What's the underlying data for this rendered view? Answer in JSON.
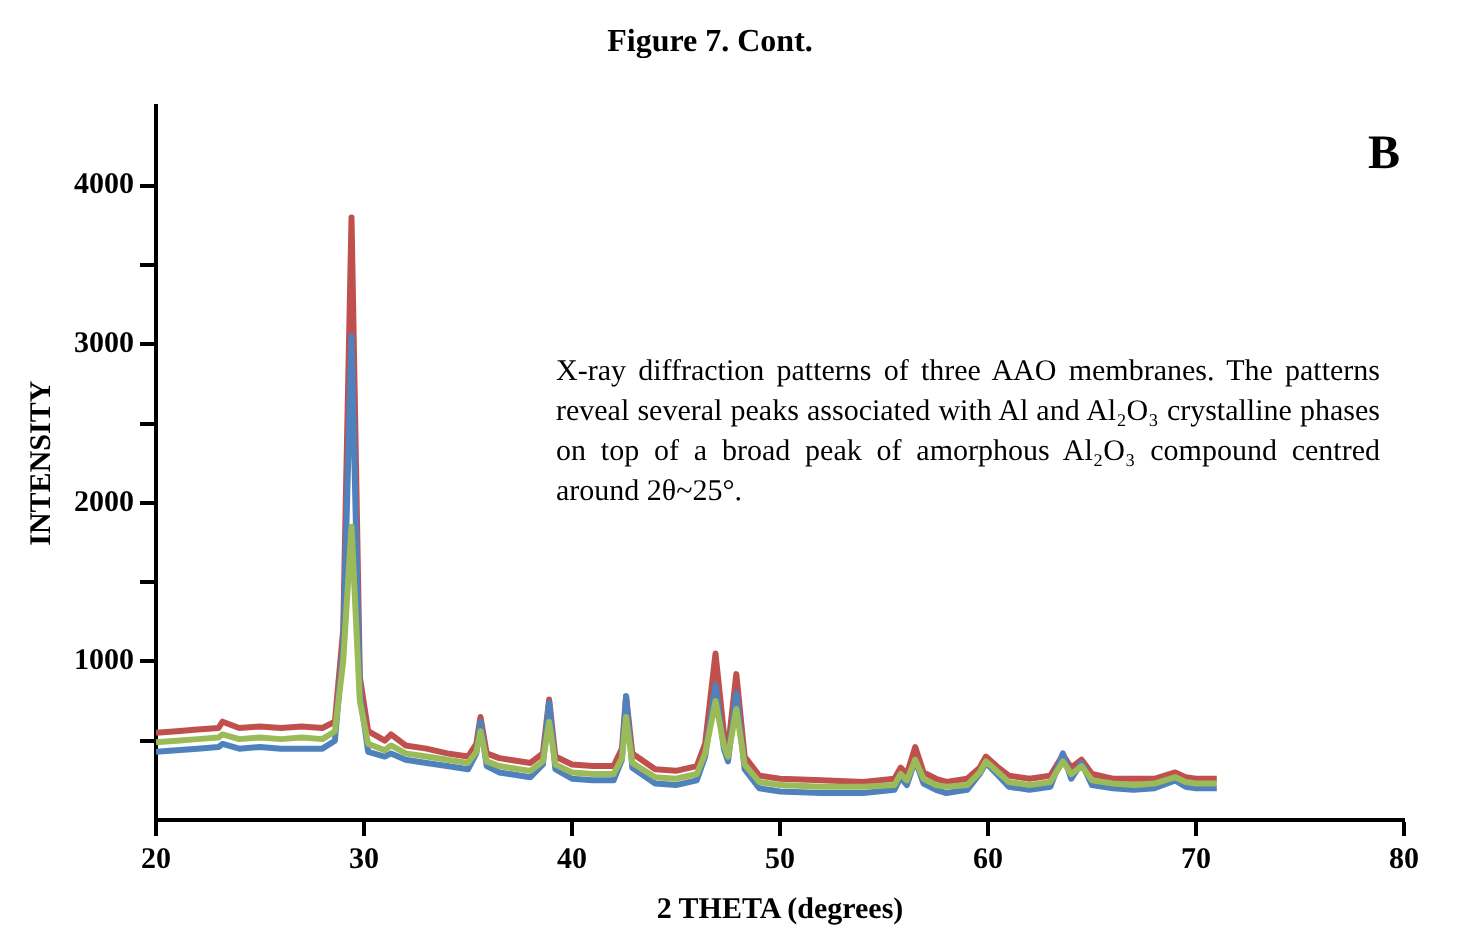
{
  "chart_data": {
    "type": "line",
    "title": "Figure 7. Cont.",
    "xlabel": "2 THETA (degrees)",
    "ylabel": "INTENSITY",
    "annotations": [
      "B",
      "X-ray diffraction patterns of three AAO membranes. The patterns reveal several peaks associated with Al and Al₂O₃ crystalline phases on top of a broad peak of amorphous Al₂O₃ compound centred around 2θ~25°."
    ],
    "x": [
      20,
      21,
      22,
      23,
      23.2,
      24,
      25,
      26,
      27,
      28,
      28.6,
      29.0,
      29.4,
      29.8,
      30.2,
      31,
      31.3,
      32,
      33,
      34,
      35,
      35.4,
      35.6,
      35.9,
      36.5,
      37,
      38,
      38.6,
      38.9,
      39.2,
      40,
      41,
      42,
      42.4,
      42.6,
      42.9,
      44,
      45,
      46,
      46.4,
      46.9,
      47.3,
      47.5,
      47.9,
      48.3,
      49,
      50,
      52,
      54,
      55.5,
      55.8,
      56.1,
      56.5,
      56.9,
      57.5,
      58,
      59,
      59.6,
      59.9,
      60.5,
      61,
      62,
      63,
      63.6,
      64,
      64.5,
      65,
      66,
      67,
      68,
      69,
      69.5,
      70,
      71
    ],
    "series": [
      {
        "color": "#c0504d",
        "values": [
          550,
          560,
          570,
          580,
          620,
          580,
          590,
          580,
          590,
          580,
          620,
          1200,
          3800,
          900,
          560,
          500,
          540,
          470,
          450,
          420,
          400,
          480,
          650,
          420,
          390,
          380,
          360,
          420,
          760,
          400,
          350,
          340,
          340,
          450,
          780,
          420,
          320,
          310,
          340,
          480,
          1050,
          550,
          450,
          920,
          400,
          280,
          260,
          250,
          240,
          260,
          330,
          290,
          460,
          300,
          260,
          240,
          260,
          330,
          400,
          330,
          280,
          260,
          280,
          410,
          330,
          380,
          290,
          260,
          260,
          260,
          300,
          270,
          260,
          260
        ]
      },
      {
        "color": "#4f81bd",
        "values": [
          430,
          440,
          450,
          460,
          480,
          450,
          460,
          450,
          450,
          450,
          500,
          1100,
          3050,
          800,
          430,
          400,
          420,
          380,
          360,
          340,
          320,
          420,
          620,
          340,
          300,
          290,
          270,
          350,
          740,
          320,
          260,
          250,
          250,
          380,
          780,
          330,
          230,
          220,
          250,
          400,
          850,
          450,
          370,
          800,
          320,
          200,
          180,
          170,
          170,
          190,
          270,
          220,
          380,
          230,
          190,
          170,
          190,
          290,
          360,
          280,
          210,
          190,
          210,
          420,
          260,
          360,
          220,
          200,
          190,
          200,
          250,
          210,
          200,
          200
        ]
      },
      {
        "color": "#9bbb59",
        "values": [
          490,
          500,
          510,
          520,
          540,
          510,
          520,
          510,
          520,
          510,
          560,
          1000,
          1850,
          750,
          480,
          440,
          470,
          420,
          400,
          380,
          360,
          430,
          560,
          370,
          340,
          330,
          310,
          370,
          620,
          350,
          300,
          290,
          290,
          390,
          650,
          360,
          270,
          260,
          290,
          420,
          750,
          470,
          400,
          700,
          350,
          240,
          220,
          210,
          210,
          220,
          290,
          250,
          380,
          260,
          220,
          210,
          220,
          300,
          370,
          300,
          240,
          220,
          240,
          370,
          290,
          340,
          250,
          230,
          220,
          230,
          270,
          240,
          230,
          230
        ]
      }
    ],
    "xlim": [
      20,
      80
    ],
    "xticks": [
      20,
      30,
      40,
      50,
      60,
      70,
      80
    ],
    "ylim": [
      0,
      4500
    ],
    "yticks": [
      {
        "value": 500,
        "label": null
      },
      1000,
      {
        "value": 1500,
        "label": null
      },
      2000,
      {
        "value": 2500,
        "label": null
      },
      3000,
      {
        "value": 3500,
        "label": null
      },
      4000
    ],
    "grid": false,
    "legend": false,
    "marker": "none",
    "line_style": "solid"
  }
}
